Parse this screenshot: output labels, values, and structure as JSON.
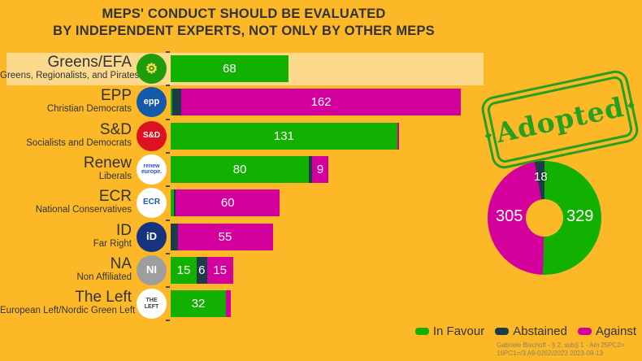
{
  "title": {
    "line1": "MEPS' CONDUCT SHOULD BE EVALUATED",
    "line2": "BY INDEPENDENT EXPERTS, NOT ONLY BY OTHER MEPS"
  },
  "stamp": {
    "label": "Adopted",
    "ornament": "◆",
    "color": "#1F9E1F"
  },
  "colors": {
    "background": "#FCB827",
    "highlight_row": "#FDD98E",
    "in_favour": "#12B000",
    "abstained": "#1B3C48",
    "against": "#D4009E",
    "text": "#333333"
  },
  "legend": [
    {
      "label": "In Favour",
      "color": "#12B000"
    },
    {
      "label": "Abstained",
      "color": "#1B3C48"
    },
    {
      "label": "Against",
      "color": "#D4009E"
    }
  ],
  "attribution": {
    "line1": "Gabriele Bischoff - § 2, sub§ 1 - Am 25PC2=",
    "line2": "16PC1=/3 A9-0262/2023 2023-09-13"
  },
  "groups": [
    {
      "name": "Greens/EFA",
      "subtitle": "Greens, Regionalists, and Pirates",
      "icon": {
        "name": "greens-efa-logo-icon",
        "bg": "#1F9B0E",
        "fg": "#FFDD55",
        "lines": [
          "⚙"
        ],
        "font_size": 17
      },
      "highlighted": true
    },
    {
      "name": "EPP",
      "subtitle": "Christian Democrats",
      "icon": {
        "name": "epp-logo-icon",
        "bg": "#1559A8",
        "fg": "#ffffff",
        "lines": [
          "epp"
        ],
        "font_size": 11
      },
      "highlighted": false
    },
    {
      "name": "S&D",
      "subtitle": "Socialists and Democrats",
      "icon": {
        "name": "sd-logo-icon",
        "bg": "#DC1220",
        "fg": "#ffffff",
        "lines": [
          "S&D"
        ],
        "font_size": 10
      },
      "highlighted": false
    },
    {
      "name": "Renew",
      "subtitle": "Liberals",
      "icon": {
        "name": "renew-europe-logo-icon",
        "bg": "#ffffff",
        "fg": "#2A50C8",
        "lines": [
          "renew",
          "europe."
        ],
        "font_size": 7
      },
      "highlighted": false
    },
    {
      "name": "ECR",
      "subtitle": "National Conservatives",
      "icon": {
        "name": "ecr-logo-icon",
        "bg": "#ffffff",
        "fg": "#1B5EA6",
        "lines": [
          "ECR"
        ],
        "font_size": 10
      },
      "highlighted": false
    },
    {
      "name": "ID",
      "subtitle": "Far Right",
      "icon": {
        "name": "id-logo-icon",
        "bg": "#16337E",
        "fg": "#ffffff",
        "lines": [
          "iD"
        ],
        "font_size": 13
      },
      "highlighted": false
    },
    {
      "name": "NA",
      "subtitle": "Non Affiliated",
      "icon": {
        "name": "ni-logo-icon",
        "bg": "#9E9E9E",
        "fg": "#ffffff",
        "lines": [
          "NI"
        ],
        "font_size": 13
      },
      "highlighted": false
    },
    {
      "name": "The Left",
      "subtitle": "European Left/Nordic Green Left",
      "icon": {
        "name": "the-left-logo-icon",
        "bg": "#ffffff",
        "fg": "#3A3A3A",
        "lines": [
          "THE",
          "LEFT"
        ],
        "font_size": 7
      },
      "highlighted": false
    }
  ],
  "chart_data": [
    {
      "type": "bar",
      "orientation": "horizontal",
      "stacked": true,
      "title": "MEPS' CONDUCT SHOULD BE EVALUATED BY INDEPENDENT EXPERTS, NOT ONLY BY OTHER MEPS",
      "categories": [
        "Greens/EFA",
        "EPP",
        "S&D",
        "Renew",
        "ECR",
        "ID",
        "NA",
        "The Left"
      ],
      "category_subtitles": [
        "Greens, Regionalists, and Pirates",
        "Christian Democrats",
        "Socialists and Democrats",
        "Liberals",
        "National Conservatives",
        "Far Right",
        "Non Affiliated",
        "European Left/Nordic Green Left"
      ],
      "series": [
        {
          "name": "In Favour",
          "color": "#12B000",
          "values": [
            68,
            1,
            131,
            80,
            2,
            0,
            15,
            32
          ]
        },
        {
          "name": "Abstained",
          "color": "#1B3C48",
          "values": [
            0,
            5,
            0,
            2,
            1,
            4,
            6,
            0
          ]
        },
        {
          "name": "Against",
          "color": "#D4009E",
          "values": [
            0,
            162,
            1,
            9,
            60,
            55,
            15,
            3
          ]
        }
      ],
      "visible_segment_labels": [
        68,
        162,
        131,
        80,
        9,
        60,
        55,
        15,
        6,
        15,
        32
      ],
      "highlighted_category": "Greens/EFA",
      "legend_position": "bottom-right",
      "grid": false,
      "min_label_value": 6
    },
    {
      "type": "pie",
      "subtype": "donut",
      "labels": [
        "In Favour",
        "Against",
        "Abstained"
      ],
      "values": [
        329,
        305,
        18
      ],
      "colors": [
        "#12B000",
        "#D4009E",
        "#1B3C48"
      ],
      "start_angle_deg": 0,
      "direction": "clockwise"
    }
  ]
}
